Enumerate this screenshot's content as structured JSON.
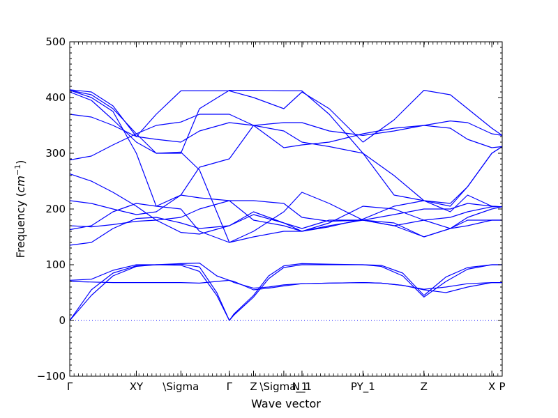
{
  "chart_data": {
    "type": "line",
    "title": "",
    "xlabel": "Wave vector",
    "ylabel": "Frequency (cm⁻¹)",
    "ylabel_parts": {
      "text": "Frequency (",
      "unit_base": "cm",
      "unit_exp": "−1",
      "close": ")"
    },
    "ylim": [
      -100,
      500
    ],
    "yticks": [
      -100,
      0,
      100,
      200,
      300,
      400,
      500
    ],
    "ytick_labels": [
      "−100",
      "0",
      "100",
      "200",
      "300",
      "400",
      "500"
    ],
    "xlim": [
      0,
      100
    ],
    "xticks": [
      {
        "x": 0,
        "label": "Γ"
      },
      {
        "x": 15.4,
        "label": "XY"
      },
      {
        "x": 25.7,
        "label": "\\Sigma"
      },
      {
        "x": 36.9,
        "label": "Γ"
      },
      {
        "x": 42.5,
        "label": "Z"
      },
      {
        "x": 49.5,
        "label": "\\Sigma_1"
      },
      {
        "x": 53.7,
        "label": "N_1"
      },
      {
        "x": 67.8,
        "label": "PY_1"
      },
      {
        "x": 81.9,
        "label": "Z"
      },
      {
        "x": 97.6,
        "label": "X"
      },
      {
        "x": 100,
        "label": "P"
      }
    ],
    "zero_line": true,
    "grid": false,
    "legend": "none",
    "line_color": "#0000ff",
    "zero_line_color": "#0000ff",
    "series": [
      {
        "x": [
          0,
          5,
          10,
          15.4,
          20,
          25.7,
          30,
          34,
          36.9,
          38,
          42.5,
          46,
          49.5,
          53.7,
          60,
          67.8,
          72,
          77,
          81.9,
          87,
          92,
          97.6,
          100
        ],
        "y": [
          0,
          55,
          85,
          98,
          100,
          99,
          88,
          45,
          0,
          12,
          45,
          80,
          98,
          102,
          101,
          100,
          99,
          85,
          45,
          78,
          95,
          100,
          100
        ]
      },
      {
        "x": [
          0,
          5,
          10,
          15.4,
          20,
          25.7,
          30,
          34,
          36.9,
          38,
          42.5,
          46,
          49.5,
          53.7,
          60,
          67.8,
          72,
          77,
          81.9,
          87,
          92,
          97.6,
          100
        ],
        "y": [
          0,
          45,
          80,
          97,
          100,
          101,
          96,
          50,
          0,
          10,
          42,
          75,
          95,
          100,
          100,
          100,
          97,
          80,
          42,
          70,
          92,
          100,
          100
        ]
      },
      {
        "x": [
          0,
          5,
          10,
          15.4,
          20,
          25.7,
          30,
          34,
          36.9,
          38,
          42.5,
          46,
          49.5,
          53.7,
          60,
          67.8,
          72,
          77,
          81.9,
          87,
          92,
          97.6,
          100
        ],
        "y": [
          72,
          74,
          90,
          100,
          100,
          102,
          103,
          80,
          72,
          70,
          55,
          58,
          62,
          66,
          67,
          68,
          67,
          63,
          56,
          60,
          66,
          68,
          68
        ]
      },
      {
        "x": [
          0,
          5,
          10,
          15.4,
          20,
          25.7,
          30,
          34,
          36.9,
          38,
          42.5,
          46,
          49.5,
          53.7,
          60,
          67.8,
          72,
          77,
          81.9,
          87,
          92,
          97.6,
          100
        ],
        "y": [
          70,
          69,
          68,
          68,
          68,
          68,
          67,
          70,
          72,
          68,
          58,
          60,
          64,
          66,
          67,
          68,
          67,
          63,
          55,
          50,
          60,
          68,
          68
        ]
      },
      {
        "x": [
          0,
          5,
          10,
          15.4,
          20,
          25.7,
          30,
          36.9,
          42.5,
          49.5,
          53.7,
          60,
          67.8,
          75,
          81.9,
          88,
          92,
          97.6,
          100
        ],
        "y": [
          135,
          140,
          165,
          183,
          185,
          175,
          165,
          170,
          195,
          175,
          165,
          180,
          180,
          170,
          150,
          165,
          170,
          180,
          180
        ]
      },
      {
        "x": [
          0,
          5,
          10,
          15.4,
          20,
          25.7,
          30,
          36.9,
          42.5,
          49.5,
          53.7,
          60,
          67.8,
          75,
          81.9,
          88,
          92,
          97.6,
          100
        ],
        "y": [
          163,
          170,
          195,
          210,
          205,
          200,
          160,
          140,
          150,
          160,
          160,
          175,
          205,
          200,
          180,
          185,
          195,
          204,
          204
        ]
      },
      {
        "x": [
          0,
          5,
          10,
          15.4,
          20,
          25.7,
          30,
          36.9,
          42.5,
          49.5,
          53.7,
          60,
          67.8,
          75,
          81.9,
          88,
          92,
          97.6,
          100
        ],
        "y": [
          170,
          168,
          172,
          178,
          180,
          185,
          200,
          215,
          215,
          210,
          185,
          178,
          180,
          190,
          200,
          200,
          210,
          205,
          204
        ]
      },
      {
        "x": [
          0,
          5,
          10,
          15.4,
          20,
          25.7,
          30,
          36.9,
          42.5,
          49.5,
          53.7,
          60,
          67.8,
          75,
          81.9,
          88,
          92,
          97.6,
          100
        ],
        "y": [
          215,
          210,
          200,
          190,
          195,
          225,
          220,
          215,
          180,
          170,
          160,
          170,
          180,
          175,
          150,
          165,
          180,
          180,
          180
        ]
      },
      {
        "x": [
          0,
          5,
          10,
          15.4,
          20,
          25.7,
          30,
          36.9,
          42.5,
          49.5,
          53.7,
          60,
          67.8,
          75,
          81.9,
          88,
          92,
          97.6,
          100
        ],
        "y": [
          263,
          250,
          230,
          205,
          180,
          158,
          155,
          170,
          190,
          175,
          160,
          168,
          182,
          205,
          215,
          195,
          225,
          205,
          204
        ]
      },
      {
        "x": [
          0,
          5,
          10,
          15.4,
          20,
          25.7,
          30,
          36.9,
          42.5,
          49.5,
          53.7,
          60,
          67.8,
          75,
          81.9,
          88,
          92,
          97.6,
          100
        ],
        "y": [
          288,
          295,
          315,
          335,
          300,
          302,
          270,
          140,
          160,
          195,
          230,
          210,
          180,
          170,
          180,
          165,
          185,
          200,
          204
        ]
      },
      {
        "x": [
          0,
          5,
          10,
          15.4,
          20,
          25.7,
          30,
          36.9,
          42.5,
          49.5,
          53.7,
          60,
          67.8,
          75,
          81.9,
          88,
          92,
          97.6,
          100
        ],
        "y": [
          370,
          365,
          350,
          330,
          325,
          320,
          340,
          355,
          350,
          340,
          320,
          312,
          300,
          225,
          215,
          210,
          240,
          300,
          312
        ]
      },
      {
        "x": [
          0,
          5,
          10,
          15.4,
          20,
          25.7,
          30,
          36.9,
          42.5,
          49.5,
          53.7,
          60,
          67.8,
          75,
          81.9,
          88,
          92,
          97.6,
          100
        ],
        "y": [
          413,
          405,
          380,
          335,
          350,
          356,
          370,
          370,
          350,
          355,
          355,
          340,
          332,
          340,
          350,
          345,
          325,
          310,
          312
        ]
      },
      {
        "x": [
          0,
          5,
          10,
          15.4,
          20,
          25.7,
          30,
          36.9,
          42.5,
          49.5,
          53.7,
          60,
          67.8,
          75,
          81.9,
          88,
          92,
          97.6,
          100
        ],
        "y": [
          413,
          400,
          375,
          300,
          205,
          225,
          275,
          290,
          350,
          310,
          315,
          320,
          335,
          345,
          350,
          358,
          355,
          335,
          332
        ]
      },
      {
        "x": [
          0,
          5,
          10,
          15.4,
          20,
          25.7,
          30,
          36.9,
          42.5,
          49.5,
          53.7,
          60,
          67.8,
          75,
          81.9,
          88,
          92,
          97.6,
          100
        ],
        "y": [
          410,
          395,
          360,
          320,
          300,
          300,
          380,
          413,
          413,
          412,
          412,
          370,
          300,
          260,
          215,
          205,
          240,
          300,
          312
        ]
      },
      {
        "x": [
          0,
          5,
          10,
          15.4,
          20,
          25.7,
          30,
          36.9,
          42.5,
          49.5,
          53.7,
          60,
          67.8,
          75,
          81.9,
          88,
          92,
          97.6,
          100
        ],
        "y": [
          414,
          410,
          385,
          330,
          370,
          412,
          412,
          412,
          400,
          380,
          410,
          380,
          320,
          360,
          413,
          405,
          380,
          345,
          332
        ]
      }
    ]
  }
}
